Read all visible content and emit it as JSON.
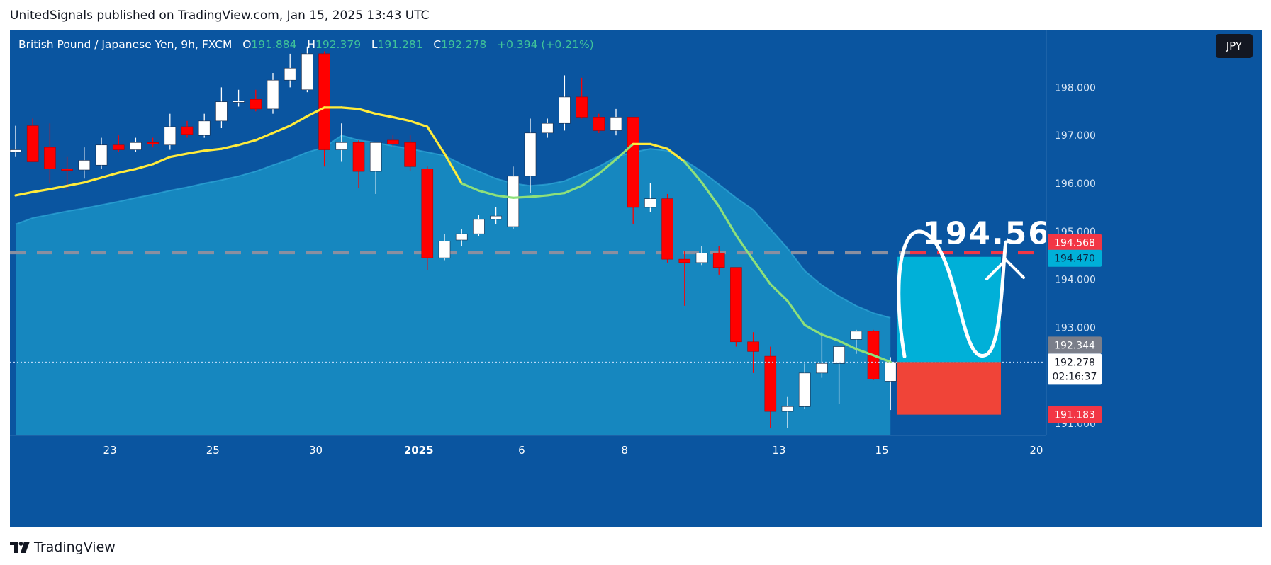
{
  "header": {
    "publish_line": "UnitedSignals published on TradingView.com, Jan 15, 2025 13:43 UTC"
  },
  "legend": {
    "symbol": "British Pound / Japanese Yen, 9h, FXCM",
    "open_label": "O",
    "open_value": "191.884",
    "high_label": "H",
    "high_value": "192.379",
    "low_label": "L",
    "low_value": "191.281",
    "close_label": "C",
    "close_value": "192.278",
    "change": "+0.394 (+0.21%)"
  },
  "currency_button": "JPY",
  "footer": {
    "brand": "TradingView"
  },
  "annotation": {
    "target_label": "194.56"
  },
  "price_badges": {
    "target_red": "194.568",
    "target_teal": "194.470",
    "gray": "192.344",
    "current": "192.278",
    "countdown": "02:16:37",
    "stop": "191.183"
  },
  "colors": {
    "background": "#0a55a0",
    "bull": "#ffffff",
    "bear": "#ff0000",
    "ema_fast": "#ffeb3b",
    "ema_fast_below": "#8ee07a",
    "area_fill": "#1a96c8",
    "target_zone": "#00b0d8",
    "stop_zone": "#f04438",
    "target_line": "#f23645"
  },
  "chart_data": {
    "type": "candlestick",
    "timeframe": "9h",
    "y_ticks": [
      191.0,
      192.0,
      193.0,
      194.0,
      195.0,
      196.0,
      197.0,
      198.0
    ],
    "y_tick_labels": [
      "191.000",
      "193.000",
      "194.000",
      "195.000",
      "196.000",
      "197.000",
      "198.000"
    ],
    "x_tick_labels": [
      {
        "label": "23",
        "bar": 5.5
      },
      {
        "label": "25",
        "bar": 11.5
      },
      {
        "label": "30",
        "bar": 17.5
      },
      {
        "label": "2025",
        "bar": 23.5
      },
      {
        "label": "6",
        "bar": 29.5
      },
      {
        "label": "8",
        "bar": 35.5
      },
      {
        "label": "13",
        "bar": 44.5
      },
      {
        "label": "15",
        "bar": 50.5
      },
      {
        "label": "20",
        "bar": 59.5
      }
    ],
    "candles": [
      {
        "o": 196.65,
        "h": 197.2,
        "l": 196.55,
        "c": 196.7
      },
      {
        "o": 197.2,
        "h": 197.35,
        "l": 196.5,
        "c": 196.45
      },
      {
        "o": 196.75,
        "h": 197.25,
        "l": 196.0,
        "c": 196.3
      },
      {
        "o": 196.3,
        "h": 196.55,
        "l": 195.85,
        "c": 196.28
      },
      {
        "o": 196.28,
        "h": 196.75,
        "l": 196.1,
        "c": 196.48
      },
      {
        "o": 196.38,
        "h": 196.95,
        "l": 196.3,
        "c": 196.8
      },
      {
        "o": 196.8,
        "h": 197.0,
        "l": 196.65,
        "c": 196.7
      },
      {
        "o": 196.7,
        "h": 196.95,
        "l": 196.65,
        "c": 196.85
      },
      {
        "o": 196.85,
        "h": 196.95,
        "l": 196.75,
        "c": 196.82
      },
      {
        "o": 196.8,
        "h": 197.45,
        "l": 196.7,
        "c": 197.18
      },
      {
        "o": 197.18,
        "h": 197.3,
        "l": 196.95,
        "c": 197.02
      },
      {
        "o": 197.0,
        "h": 197.45,
        "l": 196.95,
        "c": 197.3
      },
      {
        "o": 197.3,
        "h": 198.0,
        "l": 197.15,
        "c": 197.7
      },
      {
        "o": 197.7,
        "h": 197.95,
        "l": 197.6,
        "c": 197.72
      },
      {
        "o": 197.75,
        "h": 197.95,
        "l": 197.5,
        "c": 197.55
      },
      {
        "o": 197.55,
        "h": 198.3,
        "l": 197.45,
        "c": 198.15
      },
      {
        "o": 198.15,
        "h": 198.7,
        "l": 198.0,
        "c": 198.4
      },
      {
        "o": 197.95,
        "h": 198.85,
        "l": 197.9,
        "c": 198.7
      },
      {
        "o": 198.7,
        "h": 198.75,
        "l": 196.35,
        "c": 196.7
      },
      {
        "o": 196.7,
        "h": 197.25,
        "l": 196.45,
        "c": 196.85
      },
      {
        "o": 196.85,
        "h": 196.9,
        "l": 195.9,
        "c": 196.25
      },
      {
        "o": 196.25,
        "h": 196.85,
        "l": 195.78,
        "c": 196.85
      },
      {
        "o": 196.9,
        "h": 197.0,
        "l": 196.75,
        "c": 196.82
      },
      {
        "o": 196.85,
        "h": 197.0,
        "l": 196.25,
        "c": 196.35
      },
      {
        "o": 196.3,
        "h": 196.35,
        "l": 194.2,
        "c": 194.45
      },
      {
        "o": 194.45,
        "h": 194.95,
        "l": 194.4,
        "c": 194.8
      },
      {
        "o": 194.82,
        "h": 195.05,
        "l": 194.7,
        "c": 194.95
      },
      {
        "o": 194.95,
        "h": 195.35,
        "l": 194.9,
        "c": 195.25
      },
      {
        "o": 195.25,
        "h": 195.5,
        "l": 195.15,
        "c": 195.32
      },
      {
        "o": 195.1,
        "h": 196.35,
        "l": 195.05,
        "c": 196.15
      },
      {
        "o": 196.15,
        "h": 197.35,
        "l": 195.8,
        "c": 197.05
      },
      {
        "o": 197.05,
        "h": 197.35,
        "l": 196.95,
        "c": 197.25
      },
      {
        "o": 197.25,
        "h": 198.25,
        "l": 197.1,
        "c": 197.8
      },
      {
        "o": 197.8,
        "h": 198.2,
        "l": 197.35,
        "c": 197.38
      },
      {
        "o": 197.38,
        "h": 197.45,
        "l": 197.05,
        "c": 197.1
      },
      {
        "o": 197.1,
        "h": 197.55,
        "l": 197.0,
        "c": 197.38
      },
      {
        "o": 197.38,
        "h": 197.38,
        "l": 195.15,
        "c": 195.5
      },
      {
        "o": 195.5,
        "h": 196.0,
        "l": 195.4,
        "c": 195.68
      },
      {
        "o": 195.68,
        "h": 195.78,
        "l": 194.35,
        "c": 194.42
      },
      {
        "o": 194.42,
        "h": 194.6,
        "l": 193.45,
        "c": 194.35
      },
      {
        "o": 194.35,
        "h": 194.7,
        "l": 194.3,
        "c": 194.55
      },
      {
        "o": 194.55,
        "h": 194.7,
        "l": 194.1,
        "c": 194.25
      },
      {
        "o": 194.25,
        "h": 194.25,
        "l": 192.6,
        "c": 192.7
      },
      {
        "o": 192.7,
        "h": 192.9,
        "l": 192.05,
        "c": 192.5
      },
      {
        "o": 192.4,
        "h": 192.6,
        "l": 190.9,
        "c": 191.25
      },
      {
        "o": 191.25,
        "h": 191.55,
        "l": 190.9,
        "c": 191.35
      },
      {
        "o": 191.35,
        "h": 192.25,
        "l": 191.3,
        "c": 192.05
      },
      {
        "o": 192.05,
        "h": 192.9,
        "l": 191.95,
        "c": 192.25
      },
      {
        "o": 192.25,
        "h": 192.55,
        "l": 191.4,
        "c": 192.6
      },
      {
        "o": 192.75,
        "h": 192.95,
        "l": 192.45,
        "c": 192.92
      },
      {
        "o": 192.92,
        "h": 192.95,
        "l": 191.9,
        "c": 191.92
      },
      {
        "o": 191.88,
        "h": 192.38,
        "l": 191.28,
        "c": 192.28
      }
    ],
    "ema_fast": [
      195.75,
      195.82,
      195.88,
      195.95,
      196.02,
      196.12,
      196.22,
      196.3,
      196.4,
      196.55,
      196.62,
      196.68,
      196.72,
      196.8,
      196.9,
      197.05,
      197.2,
      197.4,
      197.58,
      197.58,
      197.55,
      197.45,
      197.38,
      197.3,
      197.18,
      196.62,
      196.0,
      195.85,
      195.75,
      195.7,
      195.72,
      195.75,
      195.8,
      195.95,
      196.2,
      196.5,
      196.82,
      196.82,
      196.72,
      196.45,
      196.02,
      195.52,
      194.92,
      194.4,
      193.9,
      193.55,
      193.05,
      192.85,
      192.72,
      192.55,
      192.42,
      192.28
    ],
    "ema_slow": [
      195.15,
      195.28,
      195.35,
      195.42,
      195.48,
      195.55,
      195.62,
      195.7,
      195.77,
      195.85,
      195.92,
      196.0,
      196.07,
      196.15,
      196.25,
      196.38,
      196.5,
      196.65,
      196.75,
      197.0,
      196.9,
      196.85,
      196.78,
      196.72,
      196.65,
      196.58,
      196.4,
      196.25,
      196.1,
      196.0,
      195.95,
      195.98,
      196.05,
      196.2,
      196.35,
      196.55,
      196.65,
      196.72,
      196.68,
      196.48,
      196.25,
      195.98,
      195.7,
      195.45,
      195.05,
      194.65,
      194.18,
      193.88,
      193.65,
      193.45,
      193.3,
      193.2
    ],
    "dashed_level": 194.56,
    "target_line_level": 194.56,
    "position": {
      "entry": 192.278,
      "target": 194.47,
      "stop": 191.183
    },
    "ylim": [
      190.75,
      199.2
    ]
  }
}
